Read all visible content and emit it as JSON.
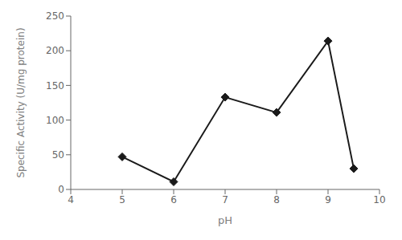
{
  "chart_data": {
    "type": "line",
    "x": [
      5,
      6,
      7,
      8,
      9,
      9.5
    ],
    "values": [
      47,
      11,
      133,
      111,
      214,
      30
    ],
    "xlabel": "pH",
    "ylabel": "Specific Activity (U/mg protein)",
    "xlim": [
      4,
      10
    ],
    "ylim": [
      0,
      250
    ],
    "xticks": [
      4,
      5,
      6,
      7,
      8,
      9,
      10
    ],
    "yticks": [
      0,
      50,
      100,
      150,
      200,
      250
    ],
    "color": "#1a1a1a",
    "marker": "diamond",
    "grid": false
  }
}
